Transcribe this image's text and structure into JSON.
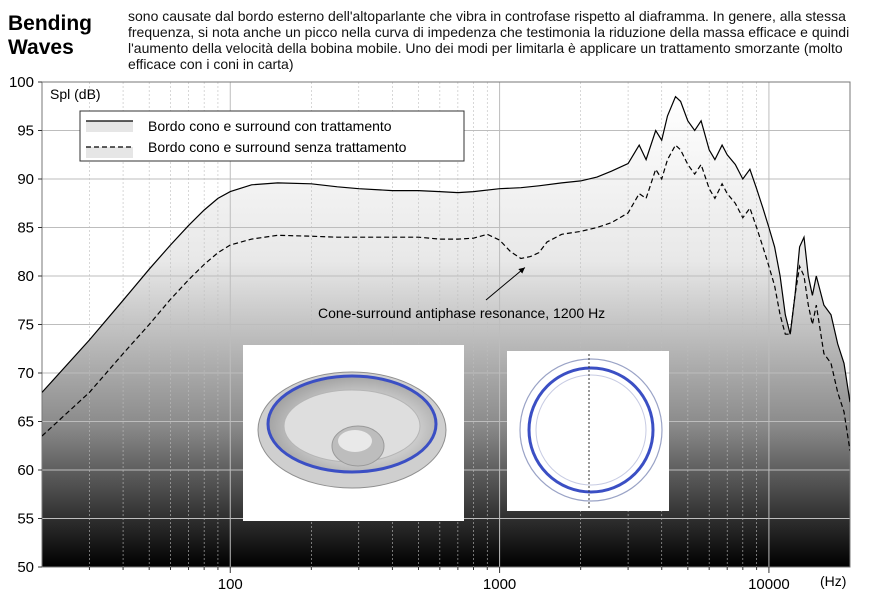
{
  "header": {
    "title_line1": "Bending",
    "title_line2": "Waves",
    "intro_text": "sono causate dal bordo esterno dell'altoparlante che vibra in controfase rispetto al diaframma. In genere, alla stessa frequenza, si nota anche un picco nella curva di impedenza che testimonia la riduzione della massa efficace e quindi l'aumento della velocità della bobina mobile. Uno dei modi per limitarla è applicare un trattamento smorzante (molto efficace con i coni in carta)"
  },
  "chart_data": {
    "type": "line",
    "xscale": "log",
    "xlim": [
      20,
      20000
    ],
    "ylim": [
      50,
      100
    ],
    "ylabel": "Spl (dB)",
    "xlabel": "(Hz)",
    "x_ticks": [
      100,
      1000,
      10000
    ],
    "x_tick_labels": [
      "100",
      "1000",
      "10000"
    ],
    "y_ticks": [
      50,
      55,
      60,
      65,
      70,
      75,
      80,
      85,
      90,
      95,
      100
    ],
    "y_tick_labels": [
      "50",
      "55",
      "60",
      "65",
      "70",
      "75",
      "80",
      "85",
      "90",
      "95",
      "100"
    ],
    "grid": true,
    "legend_position": "top-left",
    "series": [
      {
        "name": "Bordo cono e surround con trattamento",
        "style": "solid",
        "points": [
          [
            20,
            68
          ],
          [
            30,
            73.4
          ],
          [
            40,
            77.5
          ],
          [
            50,
            80.7
          ],
          [
            60,
            83.2
          ],
          [
            70,
            85.2
          ],
          [
            80,
            86.8
          ],
          [
            90,
            88
          ],
          [
            100,
            88.7
          ],
          [
            120,
            89.4
          ],
          [
            150,
            89.6
          ],
          [
            200,
            89.5
          ],
          [
            250,
            89.2
          ],
          [
            300,
            89
          ],
          [
            400,
            88.8
          ],
          [
            500,
            88.8
          ],
          [
            600,
            88.7
          ],
          [
            700,
            88.6
          ],
          [
            800,
            88.7
          ],
          [
            1000,
            89
          ],
          [
            1200,
            89.1
          ],
          [
            1400,
            89.3
          ],
          [
            1700,
            89.6
          ],
          [
            2000,
            89.8
          ],
          [
            2300,
            90.2
          ],
          [
            2600,
            90.8
          ],
          [
            3000,
            91.6
          ],
          [
            3300,
            93.5
          ],
          [
            3500,
            92
          ],
          [
            3800,
            95
          ],
          [
            4000,
            94
          ],
          [
            4200,
            96.5
          ],
          [
            4500,
            98.5
          ],
          [
            4700,
            98
          ],
          [
            5000,
            96
          ],
          [
            5300,
            95
          ],
          [
            5600,
            96
          ],
          [
            6000,
            93
          ],
          [
            6300,
            92
          ],
          [
            6700,
            93.5
          ],
          [
            7000,
            92.5
          ],
          [
            7500,
            91.5
          ],
          [
            8000,
            90
          ],
          [
            8500,
            91
          ],
          [
            9000,
            89
          ],
          [
            9500,
            87
          ],
          [
            10000,
            85
          ],
          [
            10500,
            83
          ],
          [
            11000,
            80
          ],
          [
            11500,
            76
          ],
          [
            12000,
            74
          ],
          [
            12500,
            78
          ],
          [
            13000,
            83
          ],
          [
            13500,
            84
          ],
          [
            14000,
            80
          ],
          [
            14500,
            78
          ],
          [
            15000,
            80
          ],
          [
            16000,
            77
          ],
          [
            17000,
            76
          ],
          [
            18000,
            73
          ],
          [
            19000,
            71
          ],
          [
            20000,
            67
          ]
        ]
      },
      {
        "name": "Bordo cono e surround senza trattamento",
        "style": "dashed",
        "points": [
          [
            20,
            63.5
          ],
          [
            30,
            68
          ],
          [
            40,
            72
          ],
          [
            50,
            75
          ],
          [
            60,
            77.6
          ],
          [
            70,
            79.6
          ],
          [
            80,
            81.2
          ],
          [
            90,
            82.4
          ],
          [
            100,
            83.2
          ],
          [
            120,
            83.8
          ],
          [
            150,
            84.2
          ],
          [
            200,
            84.1
          ],
          [
            250,
            84
          ],
          [
            300,
            84
          ],
          [
            400,
            84
          ],
          [
            500,
            84
          ],
          [
            600,
            83.8
          ],
          [
            700,
            83.8
          ],
          [
            800,
            83.9
          ],
          [
            900,
            84.3
          ],
          [
            1000,
            83.7
          ],
          [
            1100,
            82.5
          ],
          [
            1200,
            81.8
          ],
          [
            1300,
            82
          ],
          [
            1400,
            82.4
          ],
          [
            1500,
            83.5
          ],
          [
            1700,
            84.3
          ],
          [
            2000,
            84.6
          ],
          [
            2300,
            85
          ],
          [
            2600,
            85.5
          ],
          [
            3000,
            86.5
          ],
          [
            3300,
            88.5
          ],
          [
            3500,
            88
          ],
          [
            3800,
            91
          ],
          [
            4000,
            90
          ],
          [
            4200,
            92
          ],
          [
            4500,
            93.5
          ],
          [
            4700,
            93
          ],
          [
            5000,
            91.5
          ],
          [
            5300,
            90.5
          ],
          [
            5600,
            91.5
          ],
          [
            6000,
            89
          ],
          [
            6300,
            88
          ],
          [
            6700,
            89.5
          ],
          [
            7000,
            88.5
          ],
          [
            7500,
            87.5
          ],
          [
            8000,
            86
          ],
          [
            8500,
            87
          ],
          [
            9000,
            85
          ],
          [
            9500,
            83
          ],
          [
            10000,
            81
          ],
          [
            10500,
            79
          ],
          [
            11000,
            76
          ],
          [
            11500,
            74
          ],
          [
            12000,
            74
          ],
          [
            12500,
            78
          ],
          [
            13000,
            81
          ],
          [
            13500,
            80
          ],
          [
            14000,
            77
          ],
          [
            14500,
            75
          ],
          [
            15000,
            77
          ],
          [
            16000,
            72
          ],
          [
            17000,
            71
          ],
          [
            18000,
            68
          ],
          [
            19000,
            66
          ],
          [
            20000,
            62
          ]
        ]
      }
    ],
    "annotations": [
      {
        "text": "Cone-surround antiphase resonance, 1200 Hz",
        "arrow_to": [
          1200,
          81.5
        ]
      }
    ]
  },
  "colors": {
    "gradient_top": "#ffffff",
    "gradient_bottom": "#000000",
    "curve": "#000000",
    "grid": "#bdbdbd",
    "cone_ring": "#3b4fc4"
  },
  "images": {
    "cone_3d": "speaker-cone-3d-render",
    "cone_top": "speaker-cone-top-view"
  }
}
